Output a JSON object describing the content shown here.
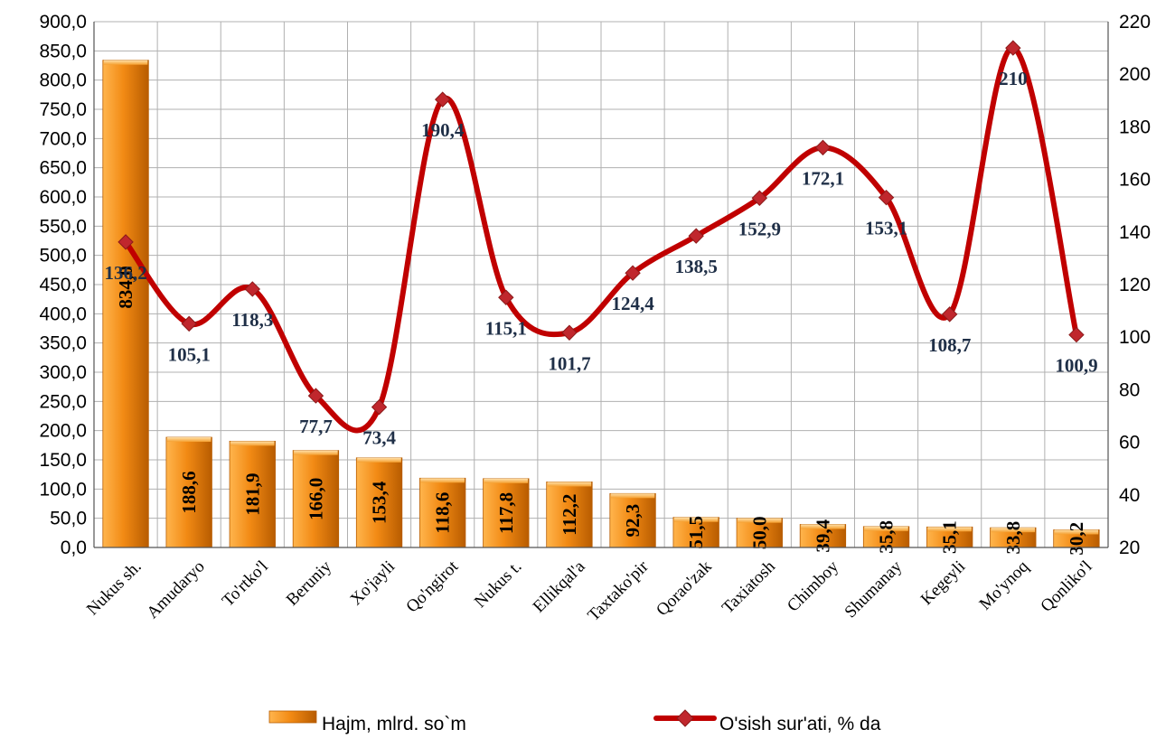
{
  "colors": {
    "bar_light": "#ffb54d",
    "bar_mid": "#f28a14",
    "bar_dark": "#b85c00",
    "line": "#c00000",
    "marker": "#c0272d",
    "line_label": "#1f2f47",
    "grid": "#b0b0b0"
  },
  "chart_data": {
    "type": "bar",
    "categories": [
      "Nukus sh.",
      "Amudaryo",
      "To'rtko'l",
      "Beruniy",
      "Xo'jayli",
      "Qo'ngirot",
      "Nukus t.",
      "Ellikqal'a",
      "Taxtako'pir",
      "Qorao'zak",
      "Taxiatosh",
      "Chimboy",
      "Shumanay",
      "Kegeyli",
      "Mo'ynoq",
      "Qonliko'l"
    ],
    "series": [
      {
        "name": "Hajm, mlrd. so`m",
        "type": "bar",
        "axis": "left",
        "values": [
          834.0,
          188.6,
          181.9,
          166.0,
          153.4,
          118.6,
          117.8,
          112.2,
          92.3,
          51.5,
          50.0,
          39.4,
          35.8,
          35.1,
          33.8,
          30.2
        ],
        "labels": [
          "834,0",
          "188,6",
          "181,9",
          "166,0",
          "153,4",
          "118,6",
          "117,8",
          "112,2",
          "92,3",
          "51,5",
          "50,0",
          "39,4",
          "35,8",
          "35,1",
          "33,8",
          "30,2"
        ]
      },
      {
        "name": "O'sish sur'ati, % da",
        "type": "line",
        "axis": "right",
        "values": [
          136.2,
          105.1,
          118.3,
          77.7,
          73.4,
          190.4,
          115.1,
          101.7,
          124.4,
          138.5,
          152.9,
          172.1,
          153.1,
          108.7,
          210,
          100.9
        ],
        "labels": [
          "136,2",
          "105,1",
          "118,3",
          "77,7",
          "73,4",
          "190,4",
          "115,1",
          "101,7",
          "124,4",
          "138,5",
          "152,9",
          "172,1",
          "153,1",
          "108,7",
          "210",
          "100,9"
        ]
      }
    ],
    "y_left": {
      "lim": [
        0,
        900
      ],
      "ticks": [
        "0,0",
        "50,0",
        "100,0",
        "150,0",
        "200,0",
        "250,0",
        "300,0",
        "350,0",
        "400,0",
        "450,0",
        "500,0",
        "550,0",
        "600,0",
        "650,0",
        "700,0",
        "750,0",
        "800,0",
        "850,0",
        "900,0"
      ]
    },
    "y_right": {
      "lim": [
        20,
        220
      ],
      "ticks": [
        "20",
        "40",
        "60",
        "80",
        "100",
        "120",
        "140",
        "160",
        "180",
        "200",
        "220"
      ]
    },
    "grid": true,
    "legend_position": "bottom"
  }
}
